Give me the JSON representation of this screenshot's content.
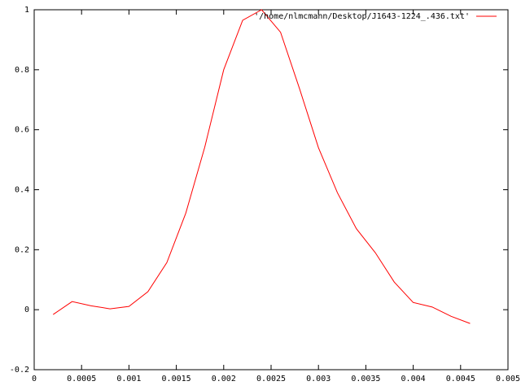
{
  "chart_data": {
    "type": "line",
    "x": [
      0.0002,
      0.0004,
      0.0006,
      0.0008,
      0.001,
      0.0012,
      0.0014,
      0.0016,
      0.0018,
      0.002,
      0.0022,
      0.0024,
      0.0026,
      0.0028,
      0.003,
      0.0032,
      0.0034,
      0.0036,
      0.0038,
      0.004,
      0.0042,
      0.0044,
      0.0046
    ],
    "series": [
      {
        "name": "'/home/nlmcmann/Desktop/J1643-1224_.436.txt'",
        "color": "#ff0000",
        "values": [
          -0.016,
          0.027,
          0.013,
          0.003,
          0.011,
          0.06,
          0.157,
          0.322,
          0.542,
          0.8,
          0.965,
          1.0,
          0.925,
          0.737,
          0.54,
          0.39,
          0.27,
          0.19,
          0.092,
          0.024,
          0.009,
          -0.022,
          -0.046
        ]
      }
    ],
    "xlim": [
      0,
      0.005
    ],
    "xticks": [
      0,
      0.0005,
      0.001,
      0.0015,
      0.002,
      0.0025,
      0.003,
      0.0035,
      0.004,
      0.0045,
      0.005
    ],
    "ylim": [
      -0.2,
      1
    ],
    "yticks": [
      -0.2,
      0,
      0.2,
      0.4,
      0.6,
      0.8,
      1
    ],
    "legend": "top-right"
  }
}
